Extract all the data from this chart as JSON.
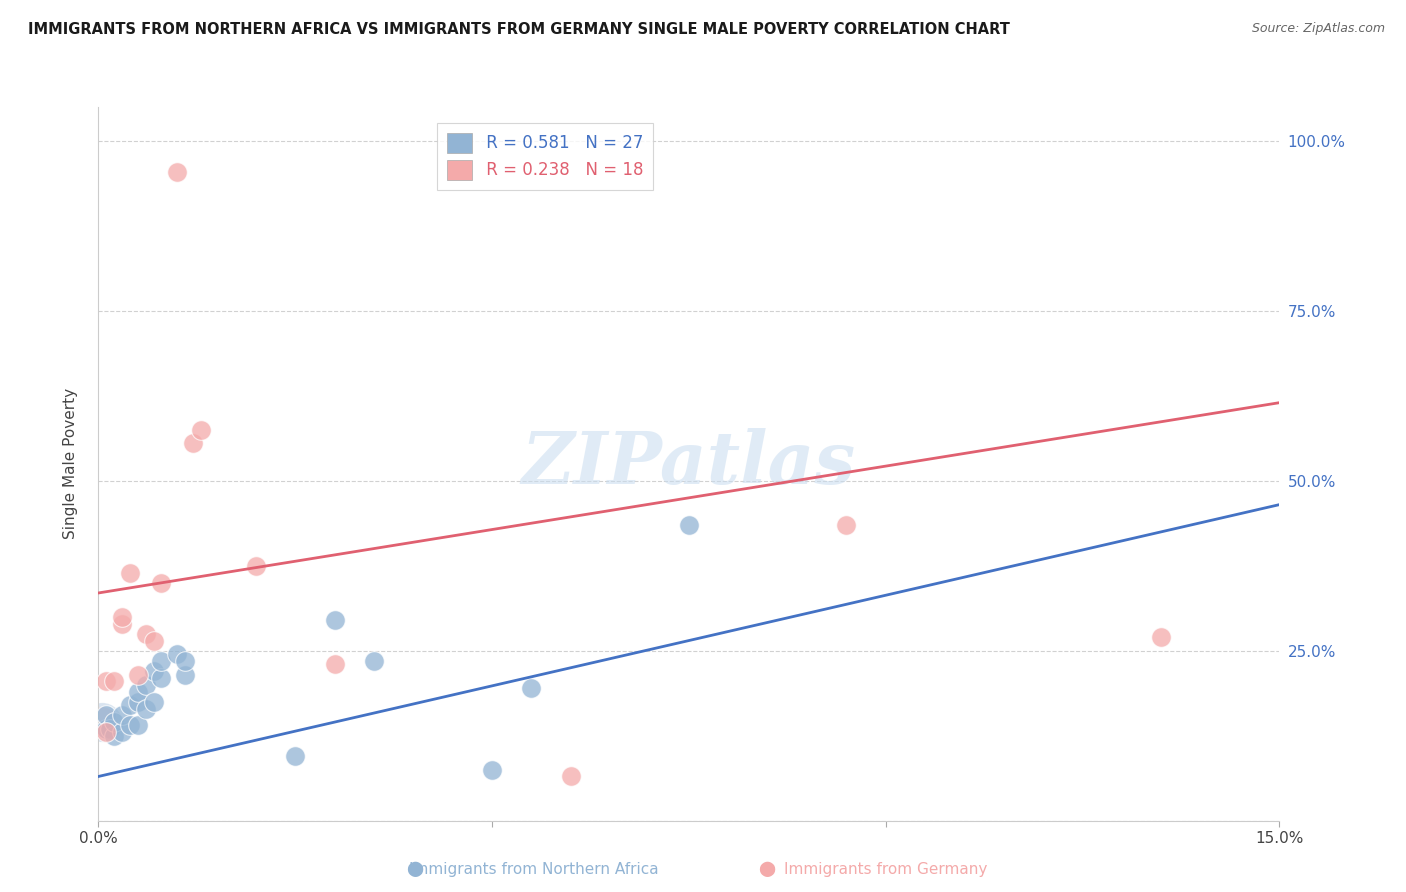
{
  "title": "IMMIGRANTS FROM NORTHERN AFRICA VS IMMIGRANTS FROM GERMANY SINGLE MALE POVERTY CORRELATION CHART",
  "source": "Source: ZipAtlas.com",
  "xlabel_blue": "Immigrants from Northern Africa",
  "xlabel_pink": "Immigrants from Germany",
  "ylabel": "Single Male Poverty",
  "x_min": 0.0,
  "x_max": 0.15,
  "y_min": 0.0,
  "y_max": 1.05,
  "R_blue": 0.581,
  "N_blue": 27,
  "R_pink": 0.238,
  "N_pink": 18,
  "blue_color": "#92B4D4",
  "pink_color": "#F4AAAA",
  "blue_line_color": "#4472C4",
  "pink_line_color": "#E06070",
  "right_axis_color": "#4472C4",
  "blue_points": [
    [
      0.001,
      0.135
    ],
    [
      0.001,
      0.155
    ],
    [
      0.0015,
      0.135
    ],
    [
      0.002,
      0.125
    ],
    [
      0.002,
      0.145
    ],
    [
      0.003,
      0.13
    ],
    [
      0.003,
      0.155
    ],
    [
      0.004,
      0.14
    ],
    [
      0.004,
      0.17
    ],
    [
      0.005,
      0.14
    ],
    [
      0.005,
      0.175
    ],
    [
      0.005,
      0.19
    ],
    [
      0.006,
      0.165
    ],
    [
      0.006,
      0.2
    ],
    [
      0.007,
      0.175
    ],
    [
      0.007,
      0.22
    ],
    [
      0.008,
      0.21
    ],
    [
      0.008,
      0.235
    ],
    [
      0.01,
      0.245
    ],
    [
      0.011,
      0.215
    ],
    [
      0.011,
      0.235
    ],
    [
      0.025,
      0.095
    ],
    [
      0.03,
      0.295
    ],
    [
      0.035,
      0.235
    ],
    [
      0.05,
      0.075
    ],
    [
      0.055,
      0.195
    ],
    [
      0.075,
      0.435
    ]
  ],
  "pink_points": [
    [
      0.001,
      0.13
    ],
    [
      0.001,
      0.205
    ],
    [
      0.002,
      0.205
    ],
    [
      0.003,
      0.29
    ],
    [
      0.003,
      0.3
    ],
    [
      0.004,
      0.365
    ],
    [
      0.005,
      0.215
    ],
    [
      0.006,
      0.275
    ],
    [
      0.007,
      0.265
    ],
    [
      0.008,
      0.35
    ],
    [
      0.01,
      0.955
    ],
    [
      0.012,
      0.555
    ],
    [
      0.013,
      0.575
    ],
    [
      0.02,
      0.375
    ],
    [
      0.03,
      0.23
    ],
    [
      0.06,
      0.065
    ],
    [
      0.095,
      0.435
    ],
    [
      0.135,
      0.27
    ]
  ],
  "blue_line_x": [
    0.0,
    0.15
  ],
  "blue_line_y": [
    0.065,
    0.465
  ],
  "pink_line_x": [
    0.0,
    0.15
  ],
  "pink_line_y": [
    0.335,
    0.615
  ],
  "watermark_text": "ZIPatlas",
  "grid_color": "#CCCCCC",
  "bg_color": "#FFFFFF"
}
